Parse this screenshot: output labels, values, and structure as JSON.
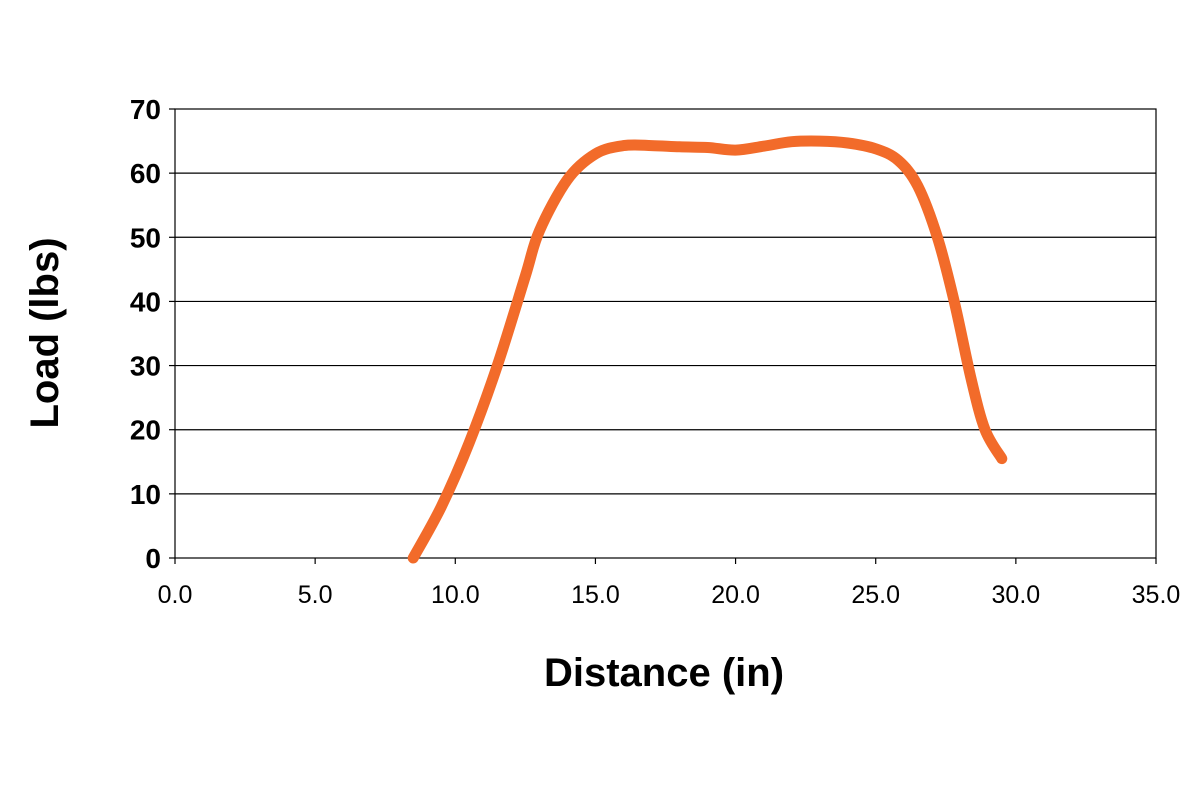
{
  "chart_data": {
    "type": "line",
    "title": "",
    "xlabel": "Distance (in)",
    "ylabel": "Load (lbs)",
    "xlim": [
      0,
      35
    ],
    "ylim": [
      0,
      70
    ],
    "x_ticks": [
      "0.0",
      "5.0",
      "10.0",
      "15.0",
      "20.0",
      "25.0",
      "30.0",
      "35.0"
    ],
    "y_ticks": [
      "0",
      "10",
      "20",
      "30",
      "40",
      "50",
      "60",
      "70"
    ],
    "grid": "horizontal",
    "legend": "none",
    "series": [
      {
        "color": "#f26b2a",
        "x": [
          8.5,
          9.5,
          10.5,
          11.5,
          12.5,
          13.0,
          14.0,
          15.0,
          16.0,
          17.0,
          18.0,
          19.0,
          20.0,
          21.0,
          22.0,
          23.0,
          24.0,
          25.0,
          25.8,
          26.5,
          27.2,
          27.8,
          28.4,
          28.9,
          29.5
        ],
        "y": [
          0,
          8,
          18,
          30,
          44,
          51,
          59,
          63,
          64.3,
          64.3,
          64.1,
          64.0,
          63.6,
          64.2,
          64.9,
          65.0,
          64.7,
          63.8,
          62.0,
          58.0,
          50.0,
          40.0,
          28.0,
          20.0,
          15.5
        ]
      }
    ]
  }
}
